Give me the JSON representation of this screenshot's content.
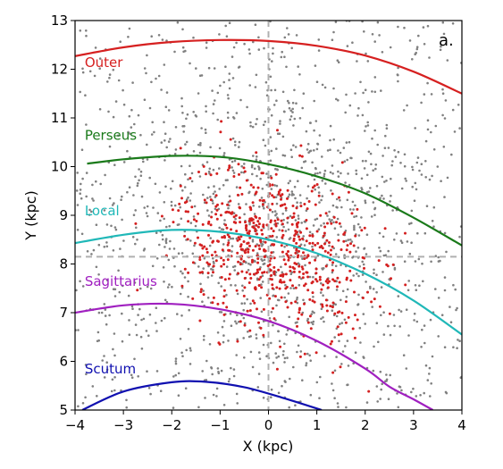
{
  "chart_data": {
    "type": "scatter",
    "panel_label": "a.",
    "xlabel": "X (kpc)",
    "ylabel": "Y (kpc)",
    "xlim": [
      -4,
      4
    ],
    "ylim": [
      5,
      13
    ],
    "xticks": [
      -4,
      -3,
      -2,
      -1,
      0,
      1,
      2,
      3,
      4
    ],
    "yticks": [
      5,
      6,
      7,
      8,
      9,
      10,
      11,
      12,
      13
    ],
    "grid": false,
    "reference_lines": {
      "x": 0,
      "y": 8.15,
      "color": "#b0b0b0",
      "style": "dashed"
    },
    "arms": [
      {
        "name": "Outer",
        "color": "#d62020",
        "label_at": [
          -3.8,
          12.05
        ],
        "x": [
          -4,
          -3,
          -2,
          -1,
          0,
          1,
          2,
          3,
          4
        ],
        "y": [
          12.27,
          12.45,
          12.56,
          12.6,
          12.58,
          12.48,
          12.28,
          11.95,
          11.5
        ]
      },
      {
        "name": "Perseus",
        "color": "#1a7a1a",
        "label_at": [
          -3.8,
          10.55
        ],
        "x": [
          -3.75,
          -3,
          -2,
          -1,
          0,
          1,
          2,
          3,
          4
        ],
        "y": [
          10.06,
          10.15,
          10.22,
          10.2,
          10.05,
          9.8,
          9.45,
          8.95,
          8.38
        ]
      },
      {
        "name": "Local",
        "color": "#20b8b8",
        "label_at": [
          -3.8,
          9.0
        ],
        "x": [
          -4,
          -3,
          -2,
          -1,
          0,
          1,
          2,
          3,
          4
        ],
        "y": [
          8.43,
          8.6,
          8.7,
          8.66,
          8.5,
          8.22,
          7.8,
          7.25,
          6.55
        ]
      },
      {
        "name": "Sagittarius",
        "color": "#a020c0",
        "label_at": [
          -3.8,
          7.55
        ],
        "x": [
          -4,
          -3,
          -2,
          -1,
          0,
          1,
          2,
          2.5,
          3,
          3.4
        ],
        "y": [
          7.0,
          7.15,
          7.18,
          7.07,
          6.83,
          6.42,
          5.85,
          5.48,
          5.22,
          5.0
        ]
      },
      {
        "name": "Scutum",
        "color": "#1010b0",
        "label_at": [
          -3.8,
          5.75
        ],
        "x": [
          -3.85,
          -3,
          -2,
          -1.3,
          -0.5,
          0.3,
          1.1
        ],
        "y": [
          5.0,
          5.38,
          5.57,
          5.58,
          5.47,
          5.25,
          5.0
        ]
      }
    ],
    "scatter_series": [
      {
        "color": "#808080",
        "count": 1500,
        "description_region": "background field"
      },
      {
        "color": "#d42020",
        "count": 600
      }
    ]
  }
}
